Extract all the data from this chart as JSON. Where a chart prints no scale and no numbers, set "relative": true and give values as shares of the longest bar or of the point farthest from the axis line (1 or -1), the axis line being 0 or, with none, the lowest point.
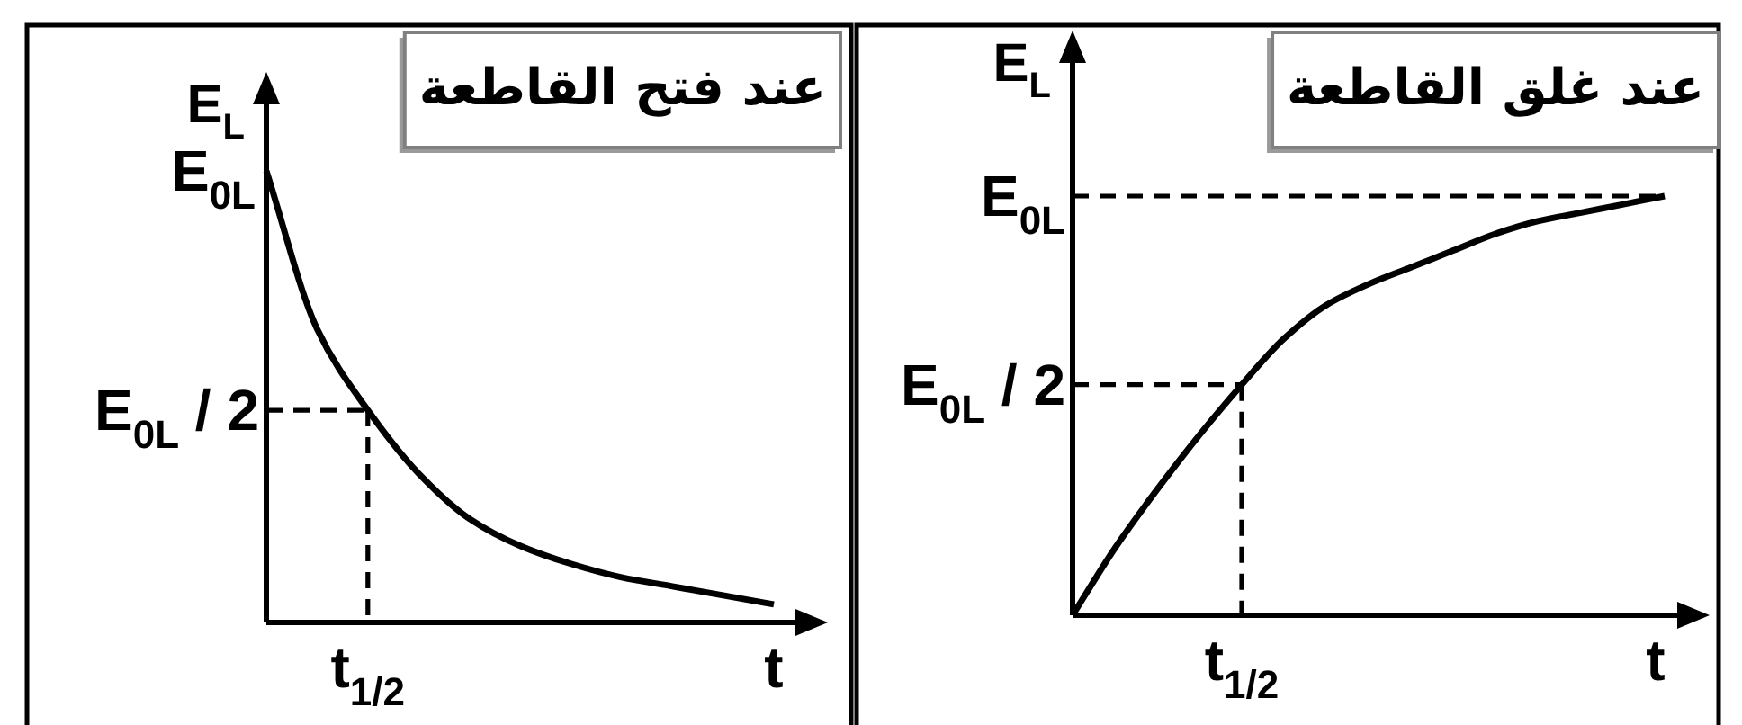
{
  "chart_data": [
    {
      "type": "line",
      "relative": true,
      "title": "عند فتح القاطعة",
      "xlabel": "t",
      "ylabel": "E$_{L}$",
      "categories": [
        null,
        null,
        null,
        null,
        null,
        null,
        null,
        null,
        null,
        null,
        null
      ],
      "series": [
        {
          "color": "#000000",
          "values": [
            1,
            0.65,
            0.47,
            0.33,
            0.23,
            0.17,
            0.13,
            0.1,
            0.08,
            0.06,
            0.04
          ]
        }
      ],
      "ref_lines": [
        {
          "axis": "y",
          "value": 0.47,
          "label": "E$_{0L}$ / 2",
          "line_style": "dashed"
        }
      ],
      "annotations": [
        "E$_{0L}$",
        {
          "text": "t$_{1/2}$",
          "y": 0.47
        }
      ]
    },
    {
      "type": "line",
      "relative": true,
      "title": "عند غلق القاطعة",
      "xlabel": "t",
      "ylabel": "E$_{L}$",
      "categories": [
        null,
        null,
        null,
        null,
        null,
        null,
        null,
        null,
        null,
        null,
        null,
        null,
        null,
        null,
        null
      ],
      "series": [
        {
          "color": "#000000",
          "values": [
            0,
            0.16,
            0.3,
            0.43,
            0.55,
            0.66,
            0.74,
            0.79,
            0.83,
            0.87,
            0.91,
            0.94,
            0.96,
            0.98,
            1
          ]
        }
      ],
      "ref_lines": [
        {
          "axis": "y",
          "value": 1,
          "label": "E$_{0L}$",
          "line_style": "dashed"
        },
        {
          "axis": "y",
          "value": 0.55,
          "label": "E$_{0L}$ / 2",
          "line_style": "dashed"
        }
      ],
      "annotations": [
        {
          "text": "t$_{1/2}$",
          "y": 0.55
        }
      ]
    }
  ]
}
